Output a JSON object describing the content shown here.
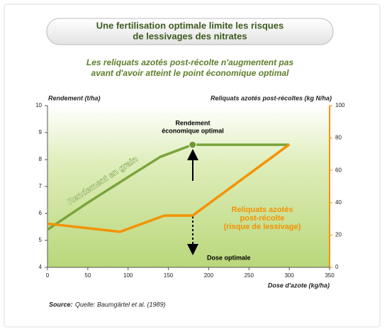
{
  "chart_data": {
    "type": "line",
    "title": [
      "Une fertilisation optimale limite les risques",
      "de lessivages des nitrates"
    ],
    "subtitle": [
      "Les reliquats azotés post-récolte n'augmentent pas",
      "avant d'avoir atteint le point économique optimal"
    ],
    "y_label": "Rendement (t/ha)",
    "y2_label": "Reliquats azotés post-récoltes (kg N/ha)",
    "x_label": "Dose d'azote (kg/ha)",
    "xlim": [
      0,
      350
    ],
    "xticks": [
      0,
      50,
      100,
      150,
      200,
      250,
      300,
      350
    ],
    "ylim": [
      4,
      10
    ],
    "yticks": [
      4,
      5,
      6,
      7,
      8,
      9,
      10
    ],
    "y2lim": [
      0,
      100
    ],
    "y2ticks": [
      0,
      20,
      40,
      60,
      80,
      100
    ],
    "grid": false,
    "series": [
      {
        "name": "Rendement en grain",
        "color": "#7aa43a",
        "axis": "y",
        "x": [
          0,
          50,
          100,
          140,
          180,
          300
        ],
        "values": [
          5.4,
          6.4,
          7.35,
          8.1,
          8.55,
          8.55
        ]
      },
      {
        "name": [
          "Reliquats azotés",
          "post-récolte",
          "(risque de lessivage)"
        ],
        "color": "#f39200",
        "axis": "y2",
        "x": [
          0,
          90,
          145,
          180,
          300
        ],
        "values": [
          27,
          22,
          32,
          32,
          76
        ]
      }
    ],
    "annotations": {
      "optimum": [
        "Rendement",
        "économique optimal"
      ],
      "dose": "Dose optimale"
    },
    "source": {
      "label": "Source:",
      "text": "Quelle: Baumgärtel et al. (1989)"
    }
  }
}
